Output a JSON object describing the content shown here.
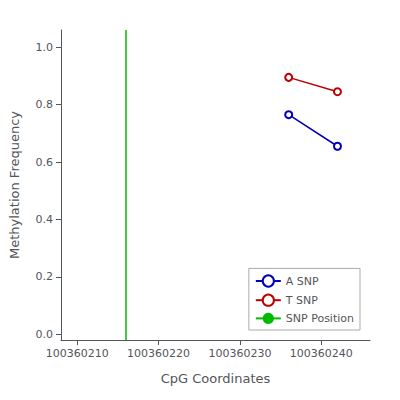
{
  "chart_data": {
    "type": "line",
    "xlabel": "CpG Coordinates",
    "ylabel": "Methylation Frequency",
    "series": [
      {
        "name": "A SNP",
        "type": "line",
        "color": "#0000BB",
        "marker": "circle",
        "x": [
          100360236,
          100360242
        ],
        "values": [
          0.765,
          0.655
        ]
      },
      {
        "name": "T SNP",
        "type": "line",
        "color": "#BB0000",
        "marker": "circle",
        "x": [
          100360236,
          100360242
        ],
        "values": [
          0.895,
          0.845
        ]
      },
      {
        "name": "SNP Position",
        "type": "vline",
        "color": "#00BB00",
        "x": [
          100360216
        ]
      }
    ],
    "xlim": [
      100360208,
      100360246
    ],
    "xticks": [
      100360210,
      100360220,
      100360230,
      100360240
    ],
    "ylim": [
      -0.02,
      1.06
    ],
    "yticks": [
      {
        "value": 0.0,
        "label": "0.0"
      },
      {
        "value": 0.2,
        "label": "0.2"
      },
      {
        "value": 0.4,
        "label": "0.4"
      },
      {
        "value": 0.6,
        "label": "0.6"
      },
      {
        "value": 0.8,
        "label": "0.8"
      },
      {
        "value": 1.0,
        "label": "1.0"
      }
    ],
    "grid": false,
    "legend": "lower right"
  }
}
